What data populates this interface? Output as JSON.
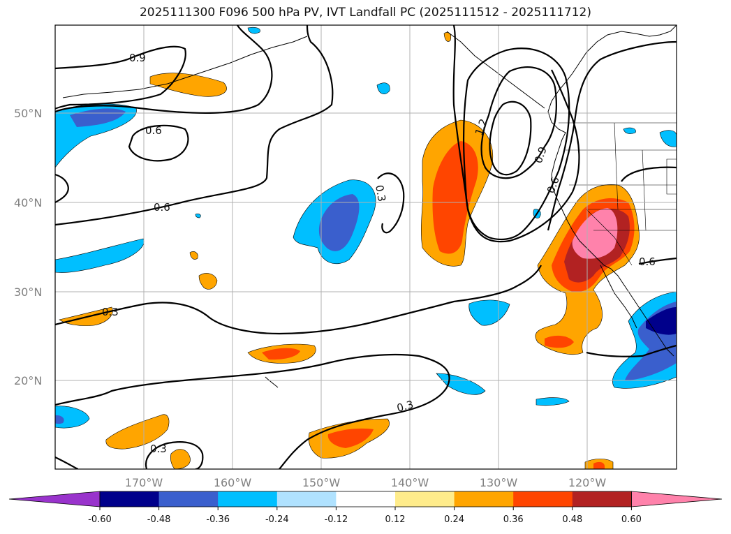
{
  "title": "2025111300 F096 500 hPa PV, IVT Landfall PC (2025111512 - 2025111712)",
  "lat_labels": [
    "50°N",
    "40°N",
    "30°N",
    "20°N"
  ],
  "lon_labels": [
    "170°W",
    "160°W",
    "150°W",
    "140°W",
    "130°W",
    "120°W"
  ],
  "contour_labels": [
    "0.9",
    "0.6",
    "0.6",
    "0.3",
    "1.2",
    "0.9",
    "0.6",
    "0.6",
    "0.3",
    "0.3",
    "0.3"
  ],
  "colorbar": {
    "colors": [
      "#9933cc",
      "#00008b",
      "#3a5fcd",
      "#00bfff",
      "#b0e2ff",
      "#ffffff",
      "#ffec8b",
      "#ffa500",
      "#ff4500",
      "#b22222",
      "#ff82ab"
    ],
    "tick_labels": [
      "-0.60",
      "-0.48",
      "-0.36",
      "-0.24",
      "-0.12",
      "0.12",
      "0.24",
      "0.36",
      "0.48",
      "0.60"
    ]
  },
  "colors": {
    "orange": "#ffa500",
    "orange_red": "#ff4500",
    "firebrick": "#b22222",
    "pink": "#ff82ab",
    "light_blue": "#00bfff",
    "royal_blue": "#3a5fcd",
    "navy": "#00008b"
  }
}
